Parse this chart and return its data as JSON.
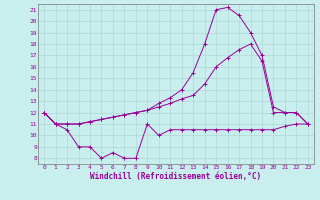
{
  "xlabel": "Windchill (Refroidissement éolien,°C)",
  "xlim": [
    -0.5,
    23.5
  ],
  "ylim": [
    7.5,
    21.5
  ],
  "yticks": [
    8,
    9,
    10,
    11,
    12,
    13,
    14,
    15,
    16,
    17,
    18,
    19,
    20,
    21
  ],
  "xticks": [
    0,
    1,
    2,
    3,
    4,
    5,
    6,
    7,
    8,
    9,
    10,
    11,
    12,
    13,
    14,
    15,
    16,
    17,
    18,
    19,
    20,
    21,
    22,
    23
  ],
  "bg_color": "#c8eeee",
  "grid_color": "#b0d8d8",
  "line_color": "#990099",
  "curve1_x": [
    0,
    1,
    2,
    3,
    4,
    5,
    6,
    7,
    8,
    9,
    10,
    11,
    12,
    13,
    14,
    15,
    16,
    17,
    18,
    19,
    20,
    21,
    22,
    23
  ],
  "curve1_y": [
    12.0,
    11.0,
    10.5,
    9.0,
    9.0,
    8.0,
    8.5,
    8.0,
    8.0,
    11.0,
    10.0,
    10.5,
    10.5,
    10.5,
    10.5,
    10.5,
    10.5,
    10.5,
    10.5,
    10.5,
    10.5,
    10.8,
    11.0,
    11.0
  ],
  "curve2_x": [
    0,
    1,
    2,
    3,
    4,
    5,
    6,
    7,
    8,
    9,
    10,
    11,
    12,
    13,
    14,
    15,
    16,
    17,
    18,
    19,
    20,
    21,
    22,
    23
  ],
  "curve2_y": [
    12.0,
    11.0,
    11.0,
    11.0,
    11.2,
    11.4,
    11.6,
    11.8,
    12.0,
    12.2,
    12.5,
    12.8,
    13.2,
    13.5,
    14.5,
    16.0,
    16.8,
    17.5,
    18.0,
    16.5,
    12.0,
    12.0,
    12.0,
    11.0
  ],
  "curve3_x": [
    0,
    1,
    2,
    3,
    4,
    5,
    6,
    7,
    8,
    9,
    10,
    11,
    12,
    13,
    14,
    15,
    16,
    17,
    18,
    19,
    20,
    21,
    22,
    23
  ],
  "curve3_y": [
    12.0,
    11.0,
    11.0,
    11.0,
    11.2,
    11.4,
    11.6,
    11.8,
    12.0,
    12.2,
    12.8,
    13.3,
    14.0,
    15.5,
    18.0,
    21.0,
    21.2,
    20.5,
    19.0,
    17.0,
    12.5,
    12.0,
    12.0,
    11.0
  ]
}
